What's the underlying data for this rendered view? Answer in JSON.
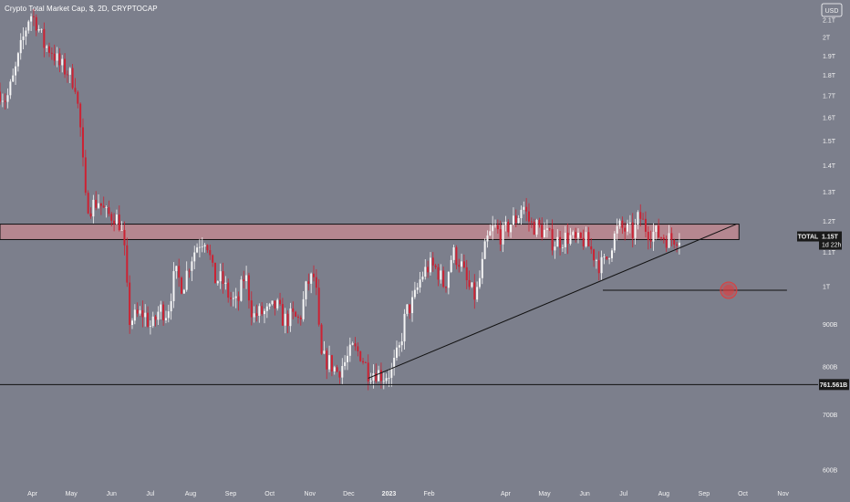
{
  "title": "Crypto Total Market Cap, $, 2D, CRYPTOCAP",
  "currency_button": "USD",
  "price_tag": {
    "symbol": "TOTAL",
    "value": "1.15T",
    "countdown": "1d 22h"
  },
  "support_tag": "761.561B",
  "colors": {
    "background": "#7c7f8c",
    "up": "#f5f5f5",
    "down": "#cc2233",
    "zone_fill": "#c08890",
    "line": "#111111",
    "marker": "#e23c3c"
  },
  "chart_data": {
    "type": "candlestick",
    "title": "Crypto Total Market Cap, $, 2D, CRYPTOCAP",
    "y_scale": "log",
    "ylim": [
      0.575,
      2.22
    ],
    "xlim": [
      "2022-03-07",
      "2023-11-28"
    ],
    "y_ticks": [
      {
        "value": 2.1,
        "label": "2.1T"
      },
      {
        "value": 2.0,
        "label": "2T"
      },
      {
        "value": 1.9,
        "label": "1.9T"
      },
      {
        "value": 1.8,
        "label": "1.8T"
      },
      {
        "value": 1.7,
        "label": "1.7T"
      },
      {
        "value": 1.6,
        "label": "1.6T"
      },
      {
        "value": 1.5,
        "label": "1.5T"
      },
      {
        "value": 1.4,
        "label": "1.4T"
      },
      {
        "value": 1.3,
        "label": "1.3T"
      },
      {
        "value": 1.2,
        "label": "1.2T"
      },
      {
        "value": 1.1,
        "label": "1.1T"
      },
      {
        "value": 1.0,
        "label": "1T"
      },
      {
        "value": 0.9,
        "label": "900B"
      },
      {
        "value": 0.8,
        "label": "800B"
      },
      {
        "value": 0.7,
        "label": "700B"
      },
      {
        "value": 0.6,
        "label": "600B"
      }
    ],
    "x_ticks": [
      {
        "date": "2022-04-01",
        "label": "Apr"
      },
      {
        "date": "2022-05-01",
        "label": "May"
      },
      {
        "date": "2022-06-01",
        "label": "Jun"
      },
      {
        "date": "2022-07-01",
        "label": "Jul"
      },
      {
        "date": "2022-08-01",
        "label": "Aug"
      },
      {
        "date": "2022-09-01",
        "label": "Sep"
      },
      {
        "date": "2022-10-01",
        "label": "Oct"
      },
      {
        "date": "2022-11-01",
        "label": "Nov"
      },
      {
        "date": "2022-12-01",
        "label": "Dec"
      },
      {
        "date": "2023-01-01",
        "label": "2023"
      },
      {
        "date": "2023-02-01",
        "label": "Feb"
      },
      {
        "date": "2023-04-01",
        "label": "Apr"
      },
      {
        "date": "2023-05-01",
        "label": "May"
      },
      {
        "date": "2023-06-01",
        "label": "Jun"
      },
      {
        "date": "2023-07-01",
        "label": "Jul"
      },
      {
        "date": "2023-08-01",
        "label": "Aug"
      },
      {
        "date": "2023-09-01",
        "label": "Sep"
      },
      {
        "date": "2023-10-01",
        "label": "Oct"
      },
      {
        "date": "2023-11-01",
        "label": "Nov"
      }
    ],
    "price_path": [
      [
        "2022-03-07",
        1.72
      ],
      [
        "2022-03-12",
        1.68
      ],
      [
        "2022-03-18",
        1.8
      ],
      [
        "2022-03-24",
        1.97
      ],
      [
        "2022-03-30",
        2.14
      ],
      [
        "2022-04-04",
        2.09
      ],
      [
        "2022-04-10",
        1.96
      ],
      [
        "2022-04-16",
        1.93
      ],
      [
        "2022-04-22",
        1.85
      ],
      [
        "2022-04-28",
        1.82
      ],
      [
        "2022-05-04",
        1.76
      ],
      [
        "2022-05-08",
        1.55
      ],
      [
        "2022-05-12",
        1.27
      ],
      [
        "2022-05-16",
        1.25
      ],
      [
        "2022-05-22",
        1.27
      ],
      [
        "2022-05-28",
        1.22
      ],
      [
        "2022-06-03",
        1.22
      ],
      [
        "2022-06-08",
        1.19
      ],
      [
        "2022-06-12",
        1.07
      ],
      [
        "2022-06-14",
        0.91
      ],
      [
        "2022-06-20",
        0.92
      ],
      [
        "2022-06-26",
        0.93
      ],
      [
        "2022-07-02",
        0.89
      ],
      [
        "2022-07-08",
        0.94
      ],
      [
        "2022-07-14",
        0.93
      ],
      [
        "2022-07-20",
        1.04
      ],
      [
        "2022-07-26",
        1.0
      ],
      [
        "2022-08-01",
        1.08
      ],
      [
        "2022-08-07",
        1.13
      ],
      [
        "2022-08-13",
        1.15
      ],
      [
        "2022-08-19",
        1.02
      ],
      [
        "2022-08-25",
        1.02
      ],
      [
        "2022-08-31",
        0.97
      ],
      [
        "2022-09-06",
        0.95
      ],
      [
        "2022-09-12",
        1.04
      ],
      [
        "2022-09-18",
        0.92
      ],
      [
        "2022-09-24",
        0.93
      ],
      [
        "2022-09-30",
        0.93
      ],
      [
        "2022-10-06",
        0.95
      ],
      [
        "2022-10-12",
        0.91
      ],
      [
        "2022-10-18",
        0.92
      ],
      [
        "2022-10-24",
        0.91
      ],
      [
        "2022-10-30",
        1.01
      ],
      [
        "2022-11-05",
        1.03
      ],
      [
        "2022-11-08",
        0.88
      ],
      [
        "2022-11-10",
        0.82
      ],
      [
        "2022-11-16",
        0.81
      ],
      [
        "2022-11-22",
        0.79
      ],
      [
        "2022-11-28",
        0.81
      ],
      [
        "2022-12-04",
        0.84
      ],
      [
        "2022-12-10",
        0.83
      ],
      [
        "2022-12-16",
        0.79
      ],
      [
        "2022-12-22",
        0.79
      ],
      [
        "2022-12-28",
        0.78
      ],
      [
        "2023-01-03",
        0.79
      ],
      [
        "2023-01-09",
        0.84
      ],
      [
        "2023-01-14",
        0.93
      ],
      [
        "2023-01-20",
        0.96
      ],
      [
        "2023-01-26",
        1.03
      ],
      [
        "2023-02-01",
        1.06
      ],
      [
        "2023-02-07",
        1.05
      ],
      [
        "2023-02-13",
        1.0
      ],
      [
        "2023-02-19",
        1.1
      ],
      [
        "2023-02-25",
        1.07
      ],
      [
        "2023-03-03",
        1.0
      ],
      [
        "2023-03-09",
        0.97
      ],
      [
        "2023-03-13",
        1.04
      ],
      [
        "2023-03-17",
        1.13
      ],
      [
        "2023-03-23",
        1.18
      ],
      [
        "2023-03-29",
        1.15
      ],
      [
        "2023-04-04",
        1.19
      ],
      [
        "2023-04-10",
        1.21
      ],
      [
        "2023-04-14",
        1.26
      ],
      [
        "2023-04-20",
        1.19
      ],
      [
        "2023-04-26",
        1.18
      ],
      [
        "2023-05-02",
        1.16
      ],
      [
        "2023-05-08",
        1.13
      ],
      [
        "2023-05-14",
        1.14
      ],
      [
        "2023-05-20",
        1.15
      ],
      [
        "2023-05-26",
        1.13
      ],
      [
        "2023-06-01",
        1.14
      ],
      [
        "2023-06-07",
        1.1
      ],
      [
        "2023-06-13",
        1.06
      ],
      [
        "2023-06-17",
        1.07
      ],
      [
        "2023-06-21",
        1.12
      ],
      [
        "2023-06-27",
        1.18
      ],
      [
        "2023-07-03",
        1.17
      ],
      [
        "2023-07-09",
        1.16
      ],
      [
        "2023-07-13",
        1.22
      ],
      [
        "2023-07-19",
        1.17
      ],
      [
        "2023-07-25",
        1.16
      ],
      [
        "2023-07-31",
        1.15
      ],
      [
        "2023-08-06",
        1.14
      ],
      [
        "2023-08-10",
        1.15
      ],
      [
        "2023-08-14",
        1.15
      ]
    ],
    "resistance_zone": {
      "low": 1.14,
      "high": 1.19,
      "x_start": "2022-03-07",
      "x_end": "2023-09-28"
    },
    "support_line": {
      "value": 0.7616,
      "label": "761.561B"
    },
    "rising_trendline": {
      "from": [
        "2022-12-16",
        0.775
      ],
      "to": [
        "2023-09-26",
        1.19
      ]
    },
    "horizontal_level": {
      "value": 0.99,
      "x_start": "2023-06-15",
      "x_end": "2023-11-04"
    },
    "marker": {
      "date": "2023-09-20",
      "value": 0.99
    },
    "last_price": 1.15
  }
}
